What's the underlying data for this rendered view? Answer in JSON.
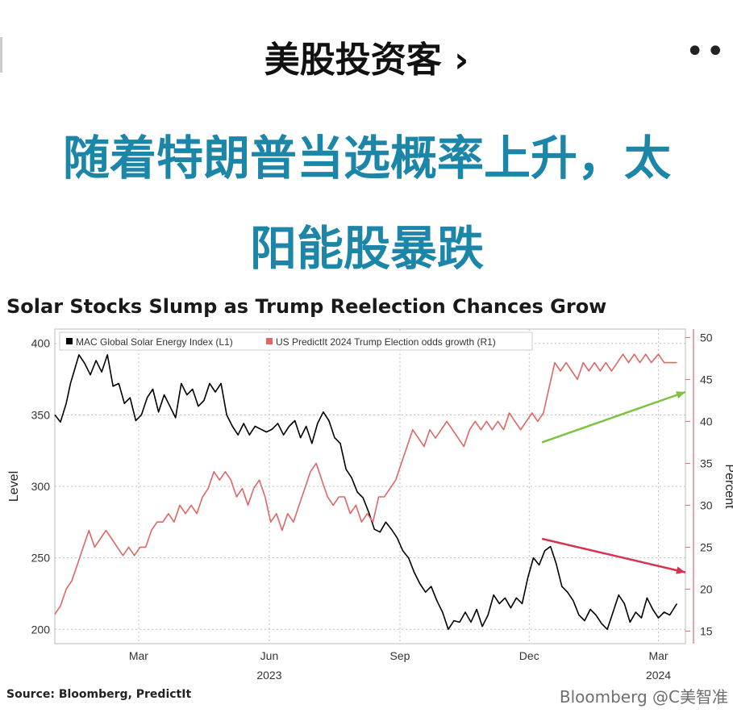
{
  "header": {
    "account_name": "美股投资客",
    "chevron": "›",
    "more_icon": "more-horizontal-icon"
  },
  "headline": {
    "line1": "随着特朗普当选概率上升，太",
    "line2": "阳能股暴跌"
  },
  "source": "Source: Bloomberg, PredictIt",
  "watermark": "Bloomberg @C美智准",
  "colors": {
    "headline": "#1c86a8",
    "left_series": "#000000",
    "right_series": "#e06666",
    "up_arrow": "#7fc241",
    "down_arrow": "#d6334e"
  },
  "chart_data": {
    "type": "line",
    "title": "Solar Stocks Slump as Trump Reelection Chances Grow",
    "ylabel_left": "Level",
    "ylabel_right": "Percent",
    "ylim_left": [
      190,
      410
    ],
    "ylim_right": [
      13.5,
      51
    ],
    "yticks_left": [
      200,
      250,
      300,
      350,
      400
    ],
    "yticks_right": [
      15,
      20,
      25,
      30,
      35,
      40,
      45,
      50
    ],
    "xlim": [
      "2023-01-01",
      "2024-03-20"
    ],
    "x_ticks": [
      {
        "label": "Mar",
        "x": "2023-03-01"
      },
      {
        "label": "Jun",
        "x": "2023-06-01"
      },
      {
        "label": "Sep",
        "x": "2023-09-01"
      },
      {
        "label": "Dec",
        "x": "2023-12-01"
      },
      {
        "label": "Mar",
        "x": "2024-03-01"
      }
    ],
    "year_labels": [
      {
        "label": "2023",
        "x": "2023-06-01"
      },
      {
        "label": "2024",
        "x": "2024-03-01"
      }
    ],
    "legend_position": "top-left",
    "grid": true,
    "series": [
      {
        "name": "MAC Global Solar Energy Index (L1)",
        "axis": "left",
        "color": "#000000",
        "points": [
          [
            "2023-01-01",
            350
          ],
          [
            "2023-01-05",
            345
          ],
          [
            "2023-01-09",
            358
          ],
          [
            "2023-01-12",
            372
          ],
          [
            "2023-01-15",
            382
          ],
          [
            "2023-01-18",
            392
          ],
          [
            "2023-01-22",
            386
          ],
          [
            "2023-01-26",
            378
          ],
          [
            "2023-01-30",
            388
          ],
          [
            "2023-02-03",
            380
          ],
          [
            "2023-02-07",
            392
          ],
          [
            "2023-02-11",
            370
          ],
          [
            "2023-02-15",
            372
          ],
          [
            "2023-02-19",
            358
          ],
          [
            "2023-02-23",
            362
          ],
          [
            "2023-02-27",
            346
          ],
          [
            "2023-03-03",
            350
          ],
          [
            "2023-03-07",
            362
          ],
          [
            "2023-03-11",
            368
          ],
          [
            "2023-03-15",
            352
          ],
          [
            "2023-03-19",
            364
          ],
          [
            "2023-03-23",
            356
          ],
          [
            "2023-03-27",
            348
          ],
          [
            "2023-03-31",
            372
          ],
          [
            "2023-04-04",
            364
          ],
          [
            "2023-04-08",
            368
          ],
          [
            "2023-04-12",
            356
          ],
          [
            "2023-04-16",
            360
          ],
          [
            "2023-04-20",
            372
          ],
          [
            "2023-04-24",
            366
          ],
          [
            "2023-04-28",
            372
          ],
          [
            "2023-05-02",
            350
          ],
          [
            "2023-05-06",
            342
          ],
          [
            "2023-05-10",
            336
          ],
          [
            "2023-05-14",
            344
          ],
          [
            "2023-05-18",
            336
          ],
          [
            "2023-05-22",
            342
          ],
          [
            "2023-05-26",
            340
          ],
          [
            "2023-05-30",
            338
          ],
          [
            "2023-06-03",
            340
          ],
          [
            "2023-06-07",
            344
          ],
          [
            "2023-06-11",
            336
          ],
          [
            "2023-06-15",
            342
          ],
          [
            "2023-06-19",
            346
          ],
          [
            "2023-06-23",
            334
          ],
          [
            "2023-06-27",
            342
          ],
          [
            "2023-07-01",
            330
          ],
          [
            "2023-07-05",
            344
          ],
          [
            "2023-07-09",
            352
          ],
          [
            "2023-07-13",
            346
          ],
          [
            "2023-07-17",
            334
          ],
          [
            "2023-07-21",
            330
          ],
          [
            "2023-07-25",
            312
          ],
          [
            "2023-07-29",
            306
          ],
          [
            "2023-08-02",
            296
          ],
          [
            "2023-08-06",
            292
          ],
          [
            "2023-08-10",
            282
          ],
          [
            "2023-08-14",
            270
          ],
          [
            "2023-08-18",
            268
          ],
          [
            "2023-08-22",
            275
          ],
          [
            "2023-08-26",
            270
          ],
          [
            "2023-08-30",
            264
          ],
          [
            "2023-09-03",
            255
          ],
          [
            "2023-09-07",
            250
          ],
          [
            "2023-09-11",
            240
          ],
          [
            "2023-09-15",
            232
          ],
          [
            "2023-09-19",
            226
          ],
          [
            "2023-09-23",
            230
          ],
          [
            "2023-09-27",
            220
          ],
          [
            "2023-10-01",
            212
          ],
          [
            "2023-10-05",
            200
          ],
          [
            "2023-10-09",
            206
          ],
          [
            "2023-10-13",
            205
          ],
          [
            "2023-10-17",
            212
          ],
          [
            "2023-10-21",
            205
          ],
          [
            "2023-10-25",
            214
          ],
          [
            "2023-10-29",
            202
          ],
          [
            "2023-11-02",
            210
          ],
          [
            "2023-11-06",
            224
          ],
          [
            "2023-11-10",
            218
          ],
          [
            "2023-11-14",
            222
          ],
          [
            "2023-11-18",
            215
          ],
          [
            "2023-11-22",
            222
          ],
          [
            "2023-11-26",
            218
          ],
          [
            "2023-11-30",
            236
          ],
          [
            "2023-12-04",
            250
          ],
          [
            "2023-12-08",
            245
          ],
          [
            "2023-12-12",
            255
          ],
          [
            "2023-12-16",
            258
          ],
          [
            "2023-12-20",
            246
          ],
          [
            "2023-12-24",
            230
          ],
          [
            "2023-12-28",
            226
          ],
          [
            "2024-01-01",
            220
          ],
          [
            "2024-01-05",
            210
          ],
          [
            "2024-01-09",
            206
          ],
          [
            "2024-01-13",
            214
          ],
          [
            "2024-01-17",
            210
          ],
          [
            "2024-01-21",
            204
          ],
          [
            "2024-01-25",
            200
          ],
          [
            "2024-01-29",
            212
          ],
          [
            "2024-02-02",
            224
          ],
          [
            "2024-02-06",
            218
          ],
          [
            "2024-02-10",
            205
          ],
          [
            "2024-02-14",
            212
          ],
          [
            "2024-02-18",
            208
          ],
          [
            "2024-02-22",
            222
          ],
          [
            "2024-02-26",
            214
          ],
          [
            "2024-03-01",
            208
          ],
          [
            "2024-03-05",
            212
          ],
          [
            "2024-03-09",
            210
          ],
          [
            "2024-03-14",
            218
          ]
        ]
      },
      {
        "name": "US PredictIt 2024 Trump Election odds growth (R1)",
        "axis": "right",
        "color": "#e06666",
        "points": [
          [
            "2023-01-01",
            17
          ],
          [
            "2023-01-05",
            18
          ],
          [
            "2023-01-09",
            20
          ],
          [
            "2023-01-13",
            21
          ],
          [
            "2023-01-17",
            23
          ],
          [
            "2023-01-21",
            25
          ],
          [
            "2023-01-25",
            27
          ],
          [
            "2023-01-29",
            25
          ],
          [
            "2023-02-02",
            26
          ],
          [
            "2023-02-06",
            27
          ],
          [
            "2023-02-10",
            26
          ],
          [
            "2023-02-14",
            25
          ],
          [
            "2023-02-18",
            24
          ],
          [
            "2023-02-22",
            25
          ],
          [
            "2023-02-26",
            24
          ],
          [
            "2023-03-02",
            25
          ],
          [
            "2023-03-06",
            25
          ],
          [
            "2023-03-10",
            27
          ],
          [
            "2023-03-14",
            28
          ],
          [
            "2023-03-18",
            28
          ],
          [
            "2023-03-22",
            29
          ],
          [
            "2023-03-26",
            28
          ],
          [
            "2023-03-30",
            30
          ],
          [
            "2023-04-03",
            29
          ],
          [
            "2023-04-07",
            30
          ],
          [
            "2023-04-11",
            29
          ],
          [
            "2023-04-15",
            31
          ],
          [
            "2023-04-19",
            32
          ],
          [
            "2023-04-23",
            34
          ],
          [
            "2023-04-27",
            33
          ],
          [
            "2023-05-01",
            34
          ],
          [
            "2023-05-05",
            33
          ],
          [
            "2023-05-09",
            31
          ],
          [
            "2023-05-13",
            32
          ],
          [
            "2023-05-17",
            30
          ],
          [
            "2023-05-21",
            32
          ],
          [
            "2023-05-25",
            33
          ],
          [
            "2023-05-29",
            31
          ],
          [
            "2023-06-02",
            28
          ],
          [
            "2023-06-06",
            29
          ],
          [
            "2023-06-10",
            27
          ],
          [
            "2023-06-14",
            29
          ],
          [
            "2023-06-18",
            28
          ],
          [
            "2023-06-22",
            30
          ],
          [
            "2023-06-26",
            32
          ],
          [
            "2023-06-30",
            34
          ],
          [
            "2023-07-04",
            35
          ],
          [
            "2023-07-08",
            33
          ],
          [
            "2023-07-12",
            31
          ],
          [
            "2023-07-16",
            30
          ],
          [
            "2023-07-20",
            31
          ],
          [
            "2023-07-24",
            31
          ],
          [
            "2023-07-28",
            29
          ],
          [
            "2023-08-01",
            30
          ],
          [
            "2023-08-05",
            28
          ],
          [
            "2023-08-09",
            29
          ],
          [
            "2023-08-13",
            28
          ],
          [
            "2023-08-17",
            31
          ],
          [
            "2023-08-21",
            31
          ],
          [
            "2023-08-25",
            32
          ],
          [
            "2023-08-29",
            33
          ],
          [
            "2023-09-02",
            35
          ],
          [
            "2023-09-06",
            37
          ],
          [
            "2023-09-10",
            39
          ],
          [
            "2023-09-14",
            38
          ],
          [
            "2023-09-18",
            37
          ],
          [
            "2023-09-22",
            39
          ],
          [
            "2023-09-26",
            38
          ],
          [
            "2023-09-30",
            39
          ],
          [
            "2023-10-04",
            40
          ],
          [
            "2023-10-08",
            39
          ],
          [
            "2023-10-12",
            38
          ],
          [
            "2023-10-16",
            37
          ],
          [
            "2023-10-20",
            39
          ],
          [
            "2023-10-24",
            40
          ],
          [
            "2023-10-28",
            39
          ],
          [
            "2023-11-01",
            40
          ],
          [
            "2023-11-05",
            39
          ],
          [
            "2023-11-09",
            40
          ],
          [
            "2023-11-13",
            39
          ],
          [
            "2023-11-17",
            41
          ],
          [
            "2023-11-21",
            40
          ],
          [
            "2023-11-25",
            39
          ],
          [
            "2023-11-29",
            40
          ],
          [
            "2023-12-03",
            41
          ],
          [
            "2023-12-07",
            40
          ],
          [
            "2023-12-11",
            41
          ],
          [
            "2023-12-15",
            44
          ],
          [
            "2023-12-19",
            47
          ],
          [
            "2023-12-23",
            46
          ],
          [
            "2023-12-27",
            47
          ],
          [
            "2023-12-31",
            46
          ],
          [
            "2024-01-04",
            45
          ],
          [
            "2024-01-08",
            47
          ],
          [
            "2024-01-12",
            46
          ],
          [
            "2024-01-16",
            47
          ],
          [
            "2024-01-20",
            46
          ],
          [
            "2024-01-24",
            47
          ],
          [
            "2024-01-28",
            46
          ],
          [
            "2024-02-01",
            47
          ],
          [
            "2024-02-05",
            48
          ],
          [
            "2024-02-09",
            47
          ],
          [
            "2024-02-13",
            48
          ],
          [
            "2024-02-17",
            47
          ],
          [
            "2024-02-21",
            48
          ],
          [
            "2024-02-25",
            47
          ],
          [
            "2024-03-01",
            48
          ],
          [
            "2024-03-05",
            47
          ],
          [
            "2024-03-09",
            47
          ],
          [
            "2024-03-14",
            47
          ]
        ]
      }
    ],
    "annotations": [
      {
        "type": "arrow",
        "color": "#7fc241",
        "from": [
          "2023-12-10",
          37.5
        ],
        "to": [
          "2024-03-20",
          43.5
        ],
        "axis": "right"
      },
      {
        "type": "arrow",
        "color": "#d6334e",
        "from": [
          "2023-12-10",
          26
        ],
        "to": [
          "2024-03-20",
          22
        ],
        "axis": "right"
      }
    ]
  }
}
